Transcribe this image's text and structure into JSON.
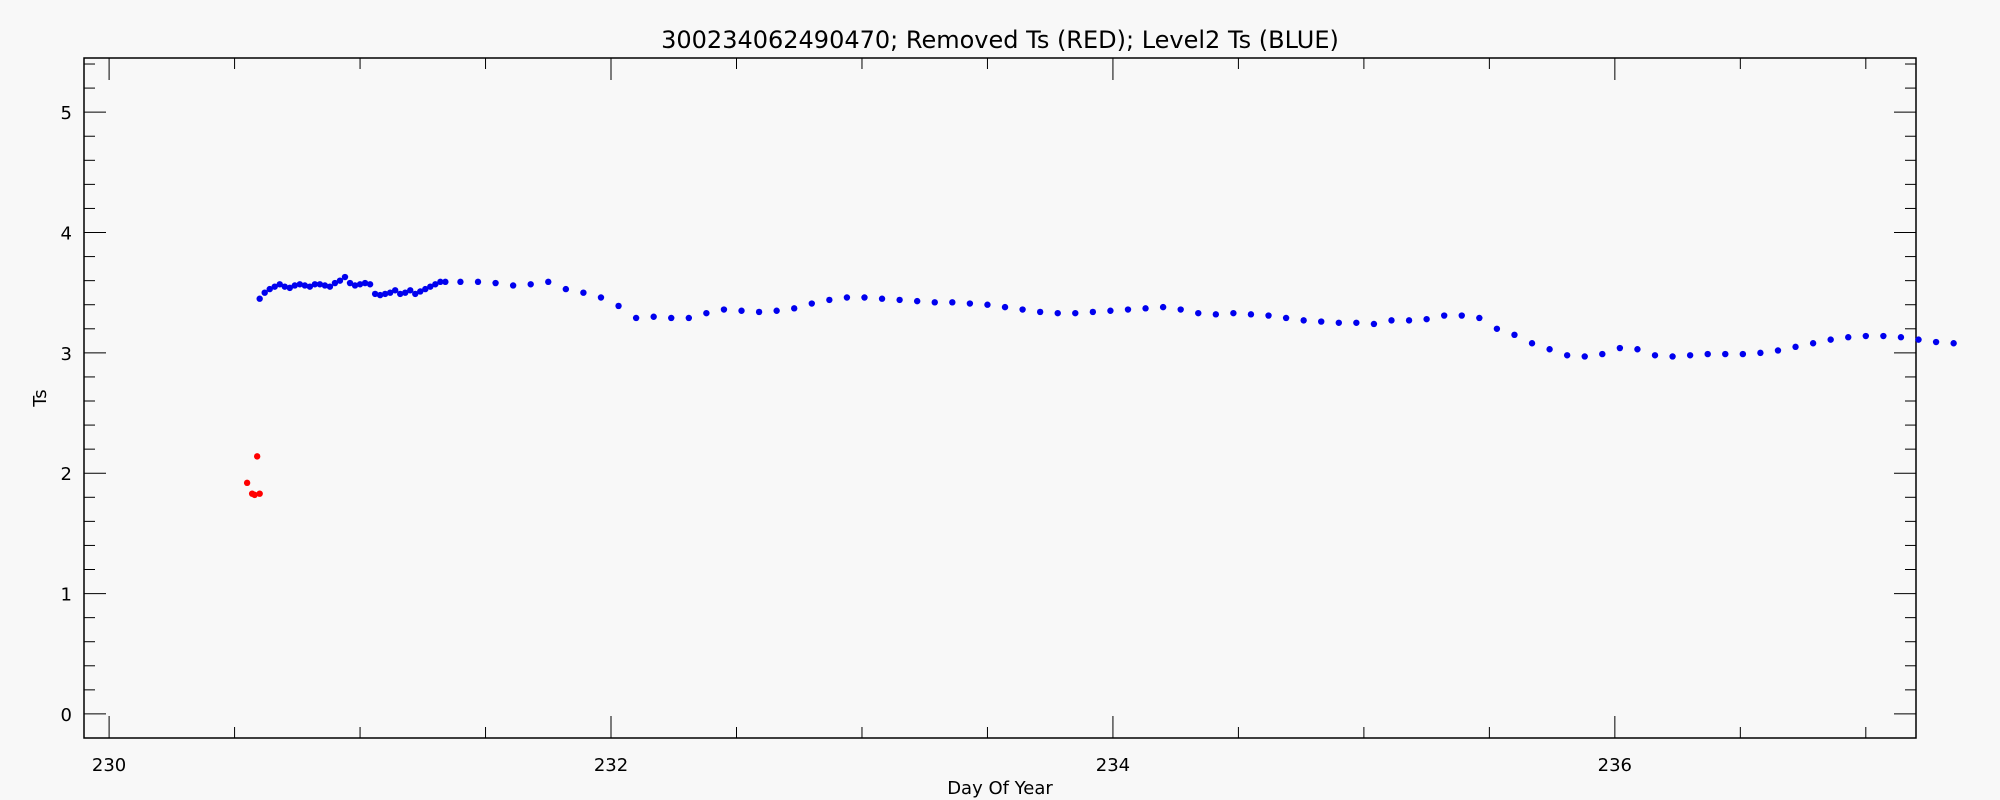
{
  "chart_data": {
    "type": "scatter",
    "title": "300234062490470; Removed Ts (RED); Level2 Ts (BLUE)",
    "xlabel": "Day Of Year",
    "ylabel": "Ts",
    "xlim": [
      229.9,
      237.2
    ],
    "ylim": [
      -0.2,
      5.45
    ],
    "xticks": [
      230,
      232,
      234,
      236
    ],
    "yticks": [
      0,
      1,
      2,
      3,
      4,
      5
    ],
    "grid": false,
    "series": [
      {
        "color": "#ff0000",
        "points": [
          [
            230.55,
            1.92
          ],
          [
            230.57,
            1.83
          ],
          [
            230.58,
            1.82
          ],
          [
            230.59,
            2.14
          ],
          [
            230.6,
            1.83
          ]
        ]
      },
      {
        "color": "#0000ee",
        "points": [
          [
            230.6,
            3.45
          ],
          [
            230.62,
            3.5
          ],
          [
            230.64,
            3.53
          ],
          [
            230.66,
            3.55
          ],
          [
            230.68,
            3.57
          ],
          [
            230.7,
            3.55
          ],
          [
            230.72,
            3.54
          ],
          [
            230.74,
            3.56
          ],
          [
            230.76,
            3.57
          ],
          [
            230.78,
            3.56
          ],
          [
            230.8,
            3.55
          ],
          [
            230.82,
            3.57
          ],
          [
            230.84,
            3.57
          ],
          [
            230.86,
            3.56
          ],
          [
            230.88,
            3.55
          ],
          [
            230.9,
            3.58
          ],
          [
            230.92,
            3.6
          ],
          [
            230.94,
            3.63
          ],
          [
            230.96,
            3.58
          ],
          [
            230.98,
            3.56
          ],
          [
            231.0,
            3.57
          ],
          [
            231.02,
            3.58
          ],
          [
            231.04,
            3.57
          ],
          [
            231.06,
            3.49
          ],
          [
            231.08,
            3.48
          ],
          [
            231.1,
            3.49
          ],
          [
            231.12,
            3.5
          ],
          [
            231.14,
            3.52
          ],
          [
            231.16,
            3.49
          ],
          [
            231.18,
            3.5
          ],
          [
            231.2,
            3.52
          ],
          [
            231.22,
            3.49
          ],
          [
            231.24,
            3.51
          ],
          [
            231.26,
            3.53
          ],
          [
            231.28,
            3.55
          ],
          [
            231.3,
            3.57
          ],
          [
            231.32,
            3.59
          ],
          [
            231.34,
            3.59
          ],
          [
            231.4,
            3.59
          ],
          [
            231.47,
            3.59
          ],
          [
            231.54,
            3.58
          ],
          [
            231.61,
            3.56
          ],
          [
            231.68,
            3.57
          ],
          [
            231.75,
            3.59
          ],
          [
            231.82,
            3.53
          ],
          [
            231.89,
            3.5
          ],
          [
            231.96,
            3.46
          ],
          [
            232.03,
            3.39
          ],
          [
            232.1,
            3.29
          ],
          [
            232.17,
            3.3
          ],
          [
            232.24,
            3.29
          ],
          [
            232.31,
            3.29
          ],
          [
            232.38,
            3.33
          ],
          [
            232.45,
            3.36
          ],
          [
            232.52,
            3.35
          ],
          [
            232.59,
            3.34
          ],
          [
            232.66,
            3.35
          ],
          [
            232.73,
            3.37
          ],
          [
            232.8,
            3.41
          ],
          [
            232.87,
            3.44
          ],
          [
            232.94,
            3.46
          ],
          [
            233.01,
            3.46
          ],
          [
            233.08,
            3.45
          ],
          [
            233.15,
            3.44
          ],
          [
            233.22,
            3.43
          ],
          [
            233.29,
            3.42
          ],
          [
            233.36,
            3.42
          ],
          [
            233.43,
            3.41
          ],
          [
            233.5,
            3.4
          ],
          [
            233.57,
            3.38
          ],
          [
            233.64,
            3.36
          ],
          [
            233.71,
            3.34
          ],
          [
            233.78,
            3.33
          ],
          [
            233.85,
            3.33
          ],
          [
            233.92,
            3.34
          ],
          [
            233.99,
            3.35
          ],
          [
            234.06,
            3.36
          ],
          [
            234.13,
            3.37
          ],
          [
            234.2,
            3.38
          ],
          [
            234.27,
            3.36
          ],
          [
            234.34,
            3.33
          ],
          [
            234.41,
            3.32
          ],
          [
            234.48,
            3.33
          ],
          [
            234.55,
            3.32
          ],
          [
            234.62,
            3.31
          ],
          [
            234.69,
            3.29
          ],
          [
            234.76,
            3.27
          ],
          [
            234.83,
            3.26
          ],
          [
            234.9,
            3.25
          ],
          [
            234.97,
            3.25
          ],
          [
            235.04,
            3.24
          ],
          [
            235.11,
            3.27
          ],
          [
            235.18,
            3.27
          ],
          [
            235.25,
            3.28
          ],
          [
            235.32,
            3.31
          ],
          [
            235.39,
            3.31
          ],
          [
            235.46,
            3.29
          ],
          [
            235.53,
            3.2
          ],
          [
            235.6,
            3.15
          ],
          [
            235.67,
            3.08
          ],
          [
            235.74,
            3.03
          ],
          [
            235.81,
            2.98
          ],
          [
            235.88,
            2.97
          ],
          [
            235.95,
            2.99
          ],
          [
            236.02,
            3.04
          ],
          [
            236.09,
            3.03
          ],
          [
            236.16,
            2.98
          ],
          [
            236.23,
            2.97
          ],
          [
            236.3,
            2.98
          ],
          [
            236.37,
            2.99
          ],
          [
            236.44,
            2.99
          ],
          [
            236.51,
            2.99
          ],
          [
            236.58,
            3.0
          ],
          [
            236.65,
            3.02
          ],
          [
            236.72,
            3.05
          ],
          [
            236.79,
            3.08
          ],
          [
            236.86,
            3.11
          ],
          [
            236.93,
            3.13
          ],
          [
            237.0,
            3.14
          ],
          [
            237.07,
            3.14
          ],
          [
            237.14,
            3.13
          ],
          [
            237.21,
            3.11
          ],
          [
            237.28,
            3.09
          ],
          [
            237.35,
            3.08
          ]
        ]
      }
    ]
  }
}
